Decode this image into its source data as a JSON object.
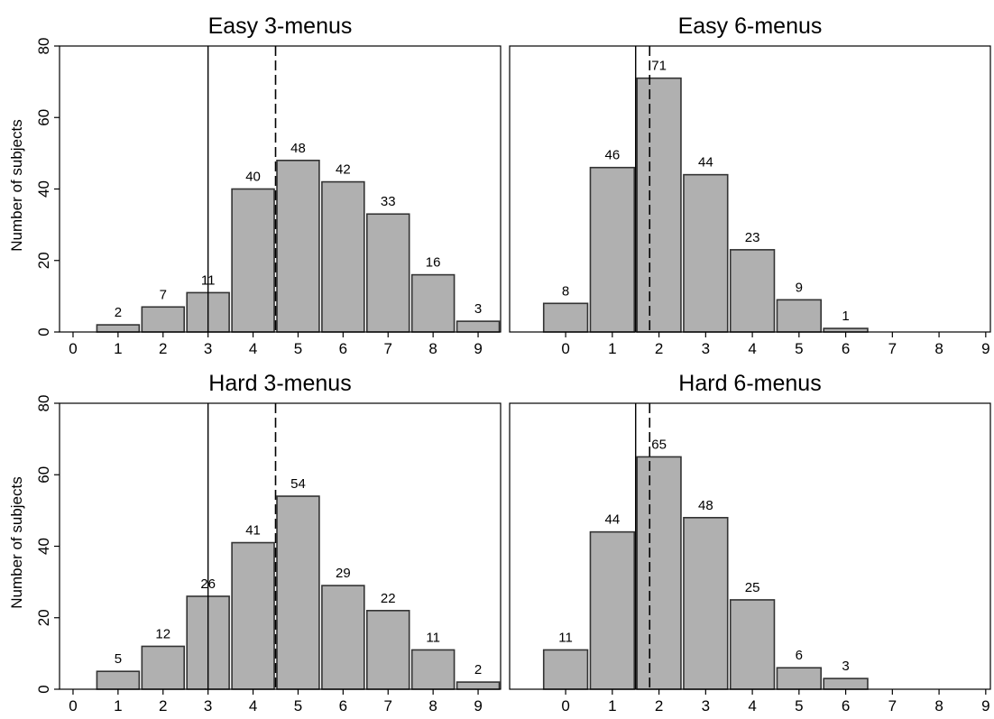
{
  "y_axis_label": "Number of subjects",
  "colors": {
    "bar_fill": "#b0b0b0",
    "bar_stroke": "#333333",
    "axis": "#000000"
  },
  "chart_data": [
    {
      "type": "bar",
      "title": "Easy 3-menus",
      "categories": [
        1,
        2,
        3,
        4,
        5,
        6,
        7,
        8,
        9
      ],
      "values": [
        2,
        7,
        11,
        40,
        48,
        42,
        33,
        16,
        3
      ],
      "xticks": [
        0,
        1,
        2,
        3,
        4,
        5,
        6,
        7,
        8,
        9
      ],
      "yticks": [
        0,
        20,
        40,
        60,
        80
      ],
      "xlim": [
        -0.3,
        9.5
      ],
      "ylim": [
        0,
        80
      ],
      "ylabel": "Number of subjects",
      "solid_line_x": 3,
      "dashed_line_x": 4.5
    },
    {
      "type": "bar",
      "title": "Easy 6-menus",
      "categories": [
        0,
        1,
        2,
        3,
        4,
        5,
        6
      ],
      "values": [
        8,
        46,
        71,
        44,
        23,
        9,
        1
      ],
      "xticks": [
        0,
        1,
        2,
        3,
        4,
        5,
        6,
        7,
        8,
        9
      ],
      "yticks": [
        0,
        20,
        40,
        60,
        80
      ],
      "xlim": [
        -1.2,
        9.1
      ],
      "ylim": [
        0,
        80
      ],
      "ylabel": "",
      "solid_line_x": 1.5,
      "dashed_line_x": 1.8
    },
    {
      "type": "bar",
      "title": "Hard 3-menus",
      "categories": [
        1,
        2,
        3,
        4,
        5,
        6,
        7,
        8,
        9
      ],
      "values": [
        5,
        12,
        26,
        41,
        54,
        29,
        22,
        11,
        2
      ],
      "xticks": [
        0,
        1,
        2,
        3,
        4,
        5,
        6,
        7,
        8,
        9
      ],
      "yticks": [
        0,
        20,
        40,
        60,
        80
      ],
      "xlim": [
        -0.3,
        9.5
      ],
      "ylim": [
        0,
        80
      ],
      "ylabel": "Number of subjects",
      "solid_line_x": 3,
      "dashed_line_x": 4.5
    },
    {
      "type": "bar",
      "title": "Hard 6-menus",
      "categories": [
        0,
        1,
        2,
        3,
        4,
        5,
        6
      ],
      "values": [
        11,
        44,
        65,
        48,
        25,
        6,
        3
      ],
      "xticks": [
        0,
        1,
        2,
        3,
        4,
        5,
        6,
        7,
        8,
        9
      ],
      "yticks": [
        0,
        20,
        40,
        60,
        80
      ],
      "xlim": [
        -1.2,
        9.1
      ],
      "ylim": [
        0,
        80
      ],
      "ylabel": "",
      "solid_line_x": 1.5,
      "dashed_line_x": 1.8
    }
  ]
}
